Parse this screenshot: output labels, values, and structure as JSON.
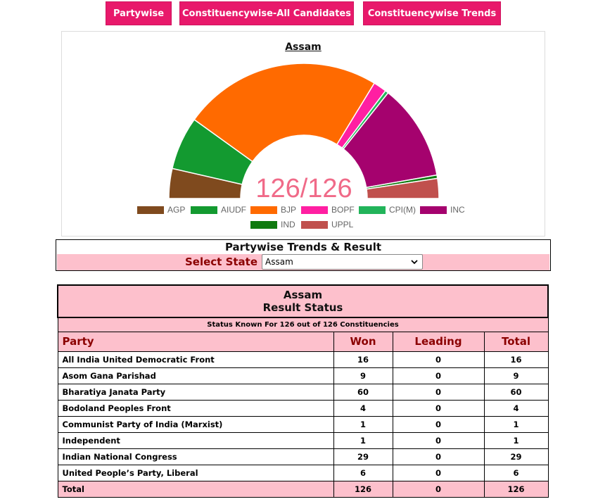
{
  "nav": {
    "partywise": "Partywise",
    "constituency_all": "Constituencywise-All Candidates",
    "constituency_trends": "Constituencywise Trends"
  },
  "chart_data": {
    "type": "pie",
    "title": "Assam",
    "center_label": "126/126",
    "variant": "half-donut (parliament)",
    "slices": [
      {
        "name": "AGP",
        "value": 9,
        "color": "#7f4a1e"
      },
      {
        "name": "AIUDF",
        "value": 16,
        "color": "#139a30"
      },
      {
        "name": "BJP",
        "value": 60,
        "color": "#ff6a00"
      },
      {
        "name": "BOPF",
        "value": 4,
        "color": "#ff1fa2"
      },
      {
        "name": "CPI(M)",
        "value": 1,
        "color": "#22b45a"
      },
      {
        "name": "INC",
        "value": 29,
        "color": "#a5026e"
      },
      {
        "name": "IND",
        "value": 1,
        "color": "#0f7a0f"
      },
      {
        "name": "UPPL",
        "value": 6,
        "color": "#c0504d"
      }
    ],
    "slice_order": [
      "AGP",
      "AIUDF",
      "BJP",
      "BOPF",
      "CPI(M)",
      "INC",
      "IND",
      "UPPL"
    ],
    "legend_position": "bottom"
  },
  "trends": {
    "title": "Partywise Trends & Result",
    "select_label": "Select State",
    "selected_state": "Assam"
  },
  "result": {
    "state": "Assam",
    "heading": "Result Status",
    "status_line": "Status Known For 126 out of 126 Constituencies",
    "columns": [
      "Party",
      "Won",
      "Leading",
      "Total"
    ],
    "rows": [
      {
        "party": "All India United Democratic Front",
        "won": "16",
        "leading": "0",
        "total": "16"
      },
      {
        "party": "Asom Gana Parishad",
        "won": "9",
        "leading": "0",
        "total": "9"
      },
      {
        "party": "Bharatiya Janata Party",
        "won": "60",
        "leading": "0",
        "total": "60"
      },
      {
        "party": "Bodoland Peoples Front",
        "won": "4",
        "leading": "0",
        "total": "4"
      },
      {
        "party": "Communist Party of India (Marxist)",
        "won": "1",
        "leading": "0",
        "total": "1"
      },
      {
        "party": "Independent",
        "won": "1",
        "leading": "0",
        "total": "1"
      },
      {
        "party": "Indian National Congress",
        "won": "29",
        "leading": "0",
        "total": "29"
      },
      {
        "party": "United People’s Party, Liberal",
        "won": "6",
        "leading": "0",
        "total": "6"
      }
    ],
    "total_row": {
      "party": "Total",
      "won": "126",
      "leading": "0",
      "total": "126"
    }
  }
}
